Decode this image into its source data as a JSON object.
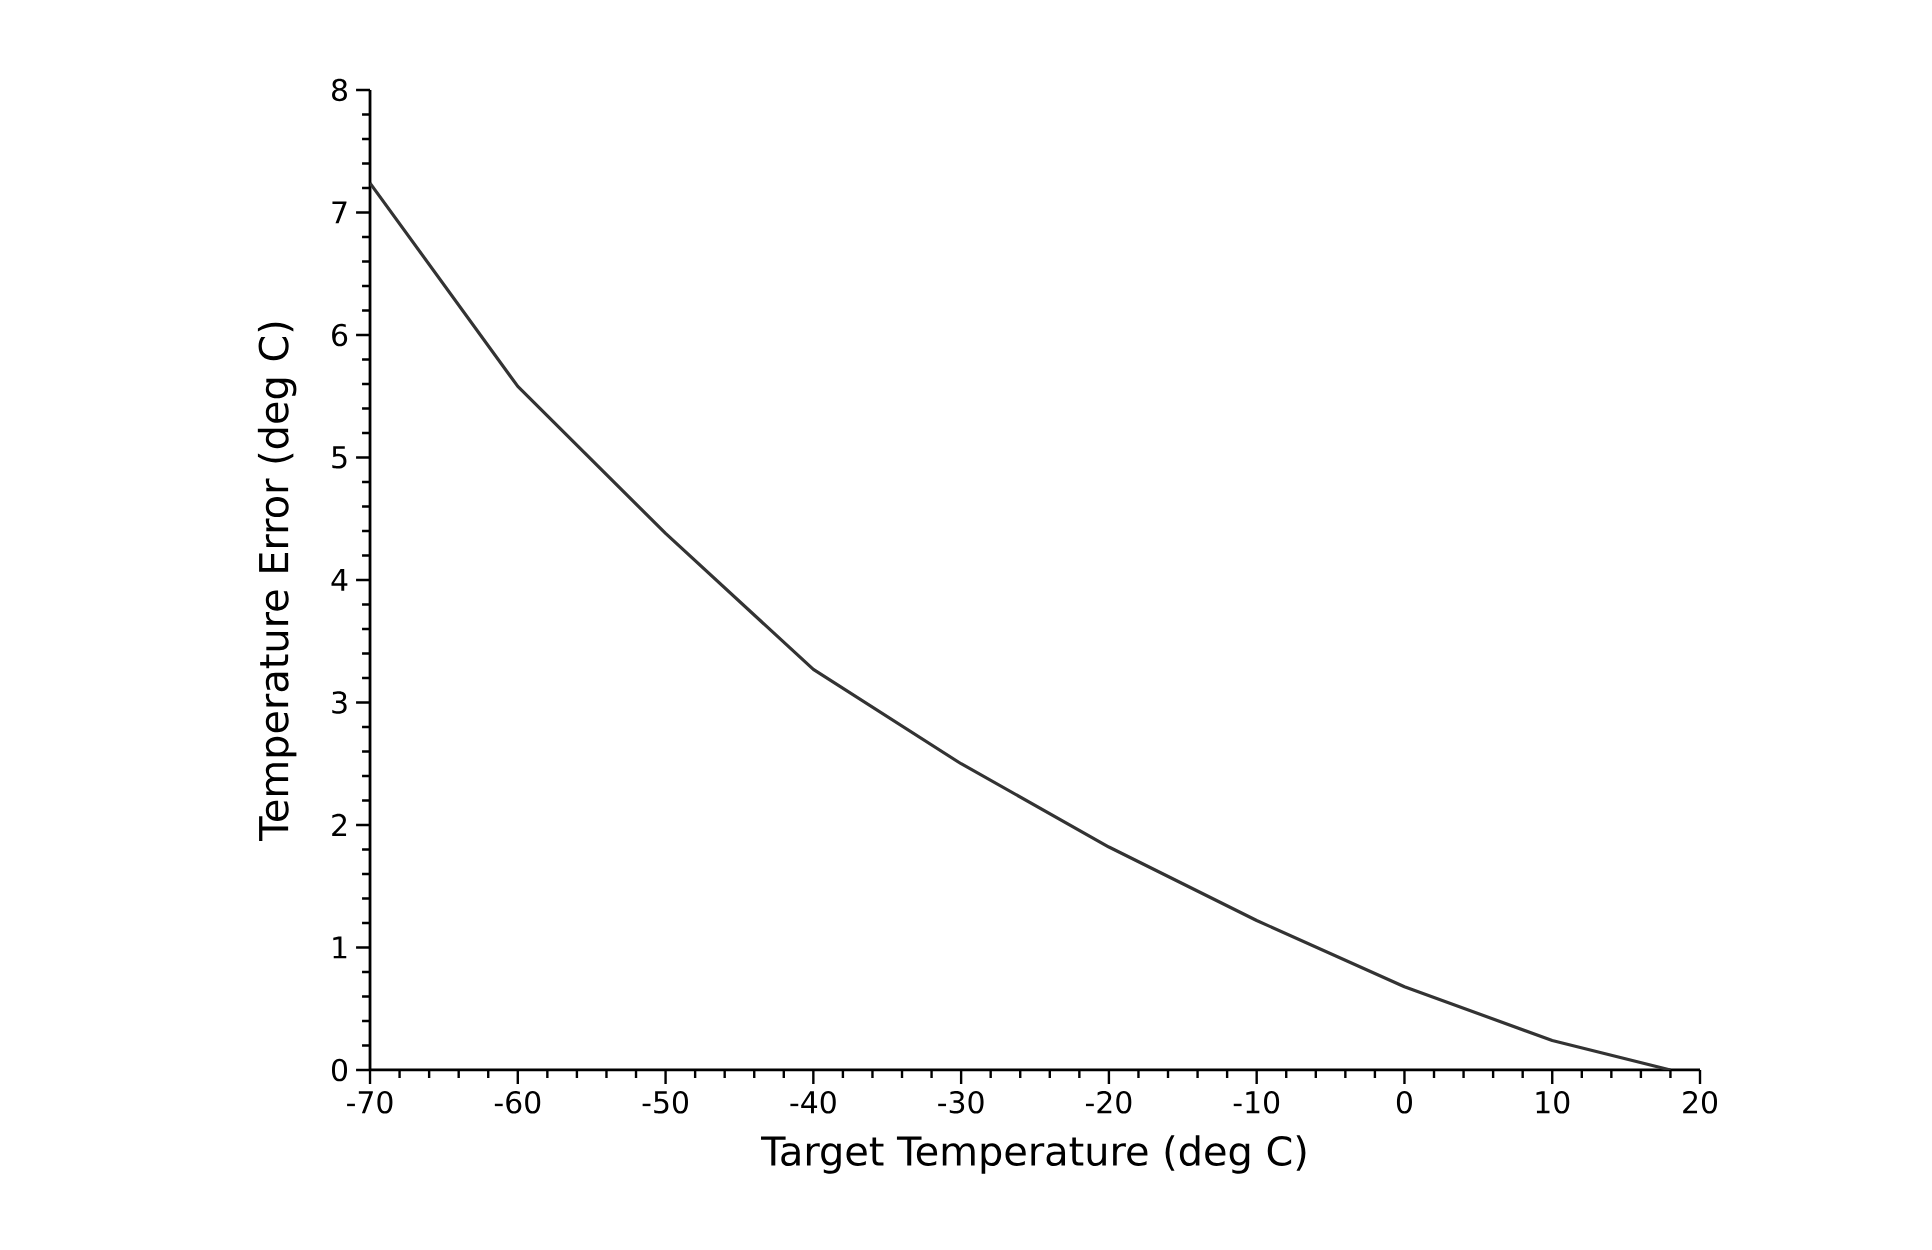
{
  "chart_data": {
    "type": "line",
    "xlabel": "Target Temperature  (deg  C)",
    "ylabel": "Temperature  Error  (deg  C)",
    "x": [
      -70,
      -60,
      -50,
      -40,
      -30,
      -20,
      -10,
      0,
      10,
      18
    ],
    "series": [
      {
        "color": "#333333",
        "values": [
          7.24,
          5.58,
          4.38,
          3.27,
          2.5,
          1.82,
          1.22,
          0.68,
          0.24,
          0
        ]
      }
    ],
    "xlim": [
      -70,
      20
    ],
    "ylim": [
      0,
      8
    ],
    "xticks": [
      -70,
      -60,
      -50,
      -40,
      -30,
      -20,
      -10,
      0,
      10,
      20
    ],
    "yticks": [
      0,
      1,
      2,
      3,
      4,
      5,
      6,
      7,
      8
    ],
    "marker": "none",
    "line_style": "solid"
  }
}
